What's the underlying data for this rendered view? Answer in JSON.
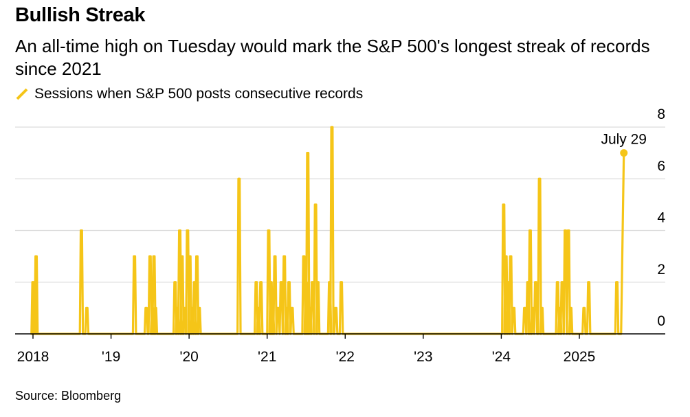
{
  "chart_data": {
    "type": "line",
    "title": "Bullish Streak",
    "subtitle": "An all-time high on Tuesday would mark the S&P 500's longest streak of records since 2021",
    "legend": [
      {
        "name": "Sessions when S&P 500 posts consecutive records",
        "color": "#F5C518"
      }
    ],
    "source": "Source: Bloomberg",
    "annotation": {
      "text": "July 29",
      "x": 2025.57,
      "y": 7
    },
    "xlabel": "",
    "ylabel": "",
    "xlim": [
      2018,
      2025.95
    ],
    "ylim": [
      0,
      8
    ],
    "y_ticks": [
      0,
      2,
      4,
      6,
      8
    ],
    "y_tick_labels": [
      "0",
      "2",
      "4",
      "6",
      "8"
    ],
    "x_ticks": [
      2018,
      2019,
      2020,
      2021,
      2022,
      2023,
      2024,
      2025
    ],
    "x_tick_labels": [
      "2018",
      "'19",
      "'20",
      "'21",
      "'22",
      "'23",
      "'24",
      "2025"
    ],
    "grid": true,
    "series": [
      {
        "name": "Sessions when S&P 500 posts consecutive records",
        "color": "#F5C518",
        "spikes": [
          [
            2018.0,
            2
          ],
          [
            2018.02,
            1
          ],
          [
            2018.03,
            2
          ],
          [
            2018.04,
            3
          ],
          [
            2018.62,
            4
          ],
          [
            2018.69,
            1
          ],
          [
            2019.3,
            3
          ],
          [
            2019.45,
            1
          ],
          [
            2019.5,
            3
          ],
          [
            2019.53,
            1
          ],
          [
            2019.55,
            3
          ],
          [
            2019.57,
            1
          ],
          [
            2019.82,
            2
          ],
          [
            2019.85,
            1
          ],
          [
            2019.88,
            4
          ],
          [
            2019.91,
            3
          ],
          [
            2019.94,
            1
          ],
          [
            2019.98,
            4
          ],
          [
            2020.01,
            3
          ],
          [
            2020.04,
            1
          ],
          [
            2020.07,
            2
          ],
          [
            2020.1,
            3
          ],
          [
            2020.13,
            1
          ],
          [
            2020.64,
            6
          ],
          [
            2020.86,
            2
          ],
          [
            2020.89,
            1
          ],
          [
            2020.92,
            2
          ],
          [
            2021.02,
            4
          ],
          [
            2021.05,
            2
          ],
          [
            2021.07,
            1
          ],
          [
            2021.1,
            3
          ],
          [
            2021.14,
            1
          ],
          [
            2021.18,
            2
          ],
          [
            2021.22,
            3
          ],
          [
            2021.25,
            1
          ],
          [
            2021.28,
            2
          ],
          [
            2021.32,
            1
          ],
          [
            2021.47,
            3
          ],
          [
            2021.5,
            2
          ],
          [
            2021.52,
            7
          ],
          [
            2021.55,
            1
          ],
          [
            2021.58,
            2
          ],
          [
            2021.62,
            5
          ],
          [
            2021.65,
            2
          ],
          [
            2021.8,
            2
          ],
          [
            2021.83,
            8
          ],
          [
            2021.88,
            1
          ],
          [
            2021.95,
            2
          ],
          [
            2024.03,
            5
          ],
          [
            2024.06,
            3
          ],
          [
            2024.09,
            2
          ],
          [
            2024.12,
            3
          ],
          [
            2024.16,
            1
          ],
          [
            2024.3,
            1
          ],
          [
            2024.34,
            2
          ],
          [
            2024.37,
            4
          ],
          [
            2024.4,
            1
          ],
          [
            2024.44,
            2
          ],
          [
            2024.49,
            6
          ],
          [
            2024.52,
            1
          ],
          [
            2024.72,
            2
          ],
          [
            2024.75,
            1
          ],
          [
            2024.78,
            2
          ],
          [
            2024.82,
            4
          ],
          [
            2024.86,
            4
          ],
          [
            2024.89,
            1
          ],
          [
            2025.06,
            1
          ],
          [
            2025.12,
            2
          ],
          [
            2025.48,
            2
          ]
        ],
        "end_point": [
          2025.57,
          7
        ]
      }
    ]
  }
}
